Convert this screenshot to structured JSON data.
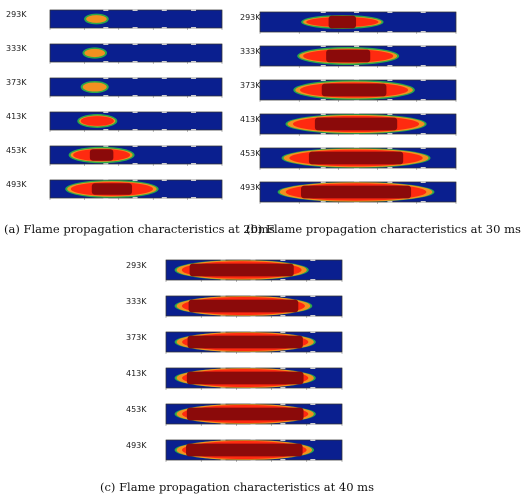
{
  "panels": [
    {
      "caption": "(a) Flame propagation characteristics at 20ms",
      "rows": [
        {
          "temp": "293K"
        },
        {
          "temp": "333K"
        },
        {
          "temp": "373K"
        },
        {
          "temp": "413K"
        },
        {
          "temp": "453K"
        },
        {
          "temp": "493K"
        }
      ]
    },
    {
      "caption": "(b) Flame propagation characteristics at 30 ms",
      "rows": [
        {
          "temp": "293K"
        },
        {
          "temp": "333K"
        },
        {
          "temp": "373K"
        },
        {
          "temp": "413K"
        },
        {
          "temp": "453K"
        },
        {
          "temp": "493K"
        }
      ]
    },
    {
      "caption": "(c) Flame propagation characteristics at 40 ms",
      "rows": [
        {
          "temp": "293K"
        },
        {
          "temp": "333K"
        },
        {
          "temp": "373K"
        },
        {
          "temp": "413K"
        },
        {
          "temp": "453K"
        },
        {
          "temp": "493K"
        }
      ]
    }
  ],
  "colors": {
    "unburnt": "#0a1f8f",
    "flame_core": "#8b0a0a",
    "flame_front": "#ff2a10",
    "flame_edge": "#f39020",
    "front_glow": "#2aa84a"
  }
}
